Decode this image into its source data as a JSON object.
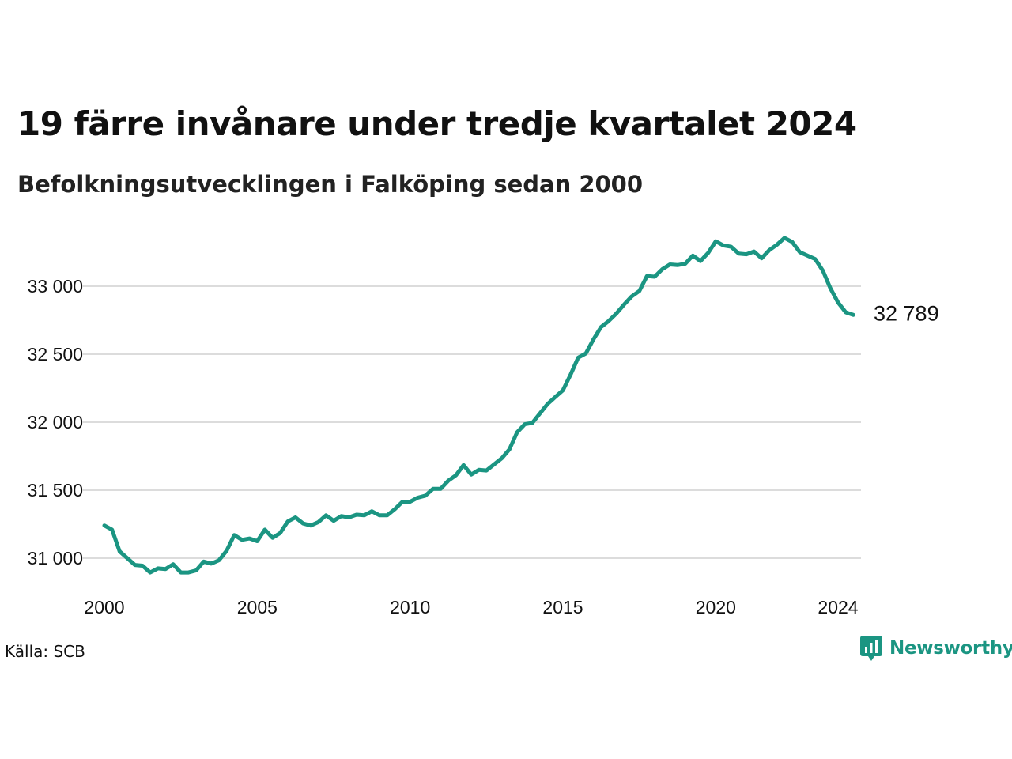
{
  "header": {
    "title": "19 färre invånare under tredje kvartalet 2024",
    "subtitle": "Befolkningsutvecklingen i Falköping sedan 2000"
  },
  "footer": {
    "source": "Källa: SCB",
    "brand": "Newsworthy"
  },
  "colors": {
    "line": "#1b9582",
    "grid": "#dcdcdc",
    "brand": "#1b9582"
  },
  "chart_data": {
    "type": "line",
    "title": "19 färre invånare under tredje kvartalet 2024",
    "subtitle": "Befolkningsutvecklingen i Falköping sedan 2000",
    "xlabel": "",
    "ylabel": "",
    "grid": true,
    "x_ticks": [
      2000,
      2005,
      2010,
      2015,
      2020,
      2024
    ],
    "x_tick_labels": [
      "2000",
      "2005",
      "2010",
      "2015",
      "2020",
      "2024"
    ],
    "y_ticks": [
      31000,
      31500,
      32000,
      32500,
      33000
    ],
    "y_tick_labels": [
      "31 000",
      "31 500",
      "32 000",
      "32 500",
      "33 000"
    ],
    "xlim": [
      2000,
      2024.75
    ],
    "ylim": [
      30800,
      33400
    ],
    "end_label": "32 789",
    "series": [
      {
        "values": [
          31240,
          31210,
          31050,
          31000,
          30950,
          30945,
          30895,
          30925,
          30920,
          30955,
          30895,
          30895,
          30910,
          30975,
          30960,
          30985,
          31055,
          31170,
          31135,
          31145,
          31125,
          31210,
          31150,
          31185,
          31270,
          31300,
          31255,
          31240,
          31265,
          31315,
          31275,
          31310,
          31300,
          31320,
          31315,
          31345,
          31315,
          31315,
          31360,
          31415,
          31415,
          31445,
          31460,
          31510,
          31510,
          31570,
          31610,
          31685,
          31615,
          31650,
          31645,
          31690,
          31735,
          31800,
          31925,
          31985,
          31995,
          32065,
          32135,
          32185,
          32235,
          32350,
          32475,
          32505,
          32610,
          32700,
          32745,
          32800,
          32865,
          32925,
          32965,
          33075,
          33070,
          33125,
          33160,
          33155,
          33165,
          33225,
          33185,
          33245,
          33330,
          33300,
          33290,
          33240,
          33235,
          33255,
          33205,
          33265,
          33305,
          33355,
          33325,
          33250,
          33225,
          33200,
          33115,
          32985,
          32880,
          32808,
          32789
        ]
      }
    ]
  }
}
